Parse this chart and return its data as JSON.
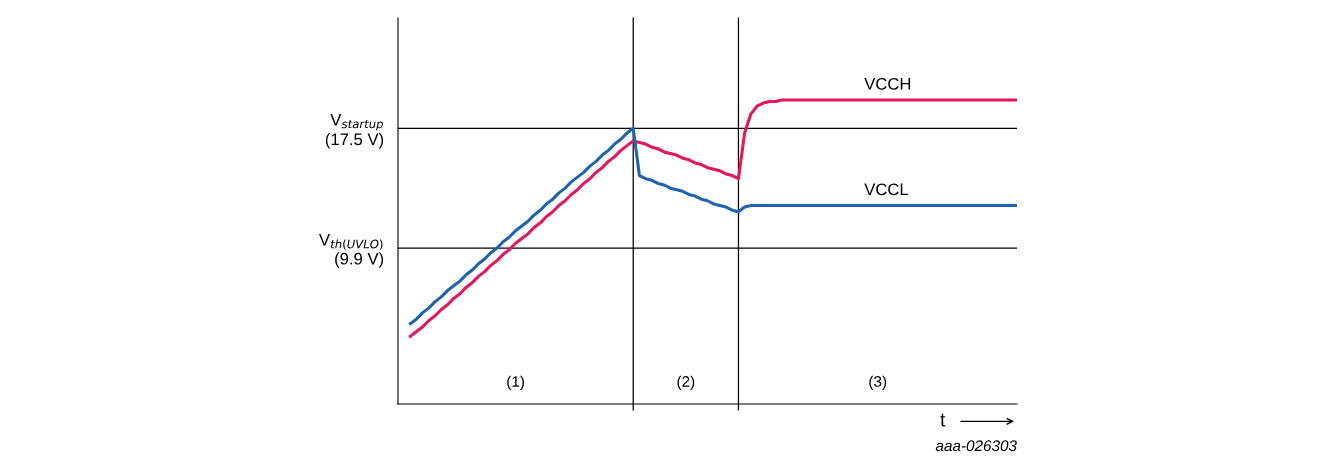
{
  "chart_data": {
    "type": "line",
    "xlabel": "t",
    "categories": [
      null,
      null,
      null,
      null,
      null,
      null,
      null,
      null,
      null,
      null,
      null,
      null,
      null,
      null,
      null,
      null,
      null,
      null,
      null,
      null,
      null,
      null,
      null,
      null,
      null,
      null,
      null,
      null,
      null,
      null,
      null,
      null,
      null,
      null,
      null,
      null,
      null,
      null,
      null,
      null,
      null,
      null,
      null,
      null,
      null,
      null,
      null,
      null,
      null,
      null,
      null,
      null,
      null,
      null,
      null,
      null,
      null,
      null,
      null,
      null,
      null,
      null,
      null,
      null,
      null,
      null,
      null,
      null,
      null,
      null,
      null,
      null,
      null,
      null,
      null,
      null,
      null,
      null,
      null,
      null,
      null,
      null,
      null,
      null,
      null,
      null,
      null,
      null,
      null,
      null,
      null,
      null,
      null,
      null,
      null,
      null,
      null,
      null,
      null,
      null,
      null
    ],
    "ylim": [
      0,
      24.5
    ],
    "yticks": [
      {
        "value": 17.5,
        "label": "V$_{startup}$\n(17.5 V)"
      },
      {
        "value": 9.9,
        "label": "V$_{th(UVLO)}$\n(9.9 V)"
      }
    ],
    "tick_labels": "y",
    "legend": false,
    "marker": "none",
    "line_style": "solid",
    "series": [
      {
        "name": "VCCH",
        "color": "#e5175c",
        "values": [
          null,
          null,
          4.3,
          4.6,
          4.9,
          5.3,
          5.6,
          6.0,
          6.3,
          6.7,
          7.0,
          7.4,
          7.7,
          8.1,
          8.4,
          8.8,
          9.1,
          9.5,
          9.8,
          10.2,
          10.5,
          10.8,
          11.2,
          11.5,
          11.9,
          12.2,
          12.6,
          12.9,
          13.3,
          13.6,
          14.0,
          14.3,
          14.7,
          15.0,
          15.4,
          15.7,
          16.1,
          16.4,
          16.7,
          16.6,
          16.5,
          16.3,
          16.2,
          16.0,
          15.9,
          15.8,
          15.6,
          15.5,
          15.3,
          15.2,
          15.0,
          14.9,
          14.8,
          14.6,
          14.5,
          14.3,
          17.2,
          18.4,
          18.9,
          19.1,
          19.2,
          19.2,
          19.3,
          19.3,
          19.3,
          19.3,
          19.3,
          19.3,
          19.3,
          19.3,
          19.3,
          19.3,
          19.3,
          19.3,
          19.3,
          19.3,
          19.3,
          19.3,
          19.3,
          19.3,
          19.3,
          19.3,
          19.3,
          19.3,
          19.3,
          19.3,
          19.3,
          19.3,
          19.3,
          19.3,
          19.3,
          19.3,
          19.3,
          19.3,
          19.3,
          19.3,
          19.3,
          19.3,
          19.3,
          19.3,
          19.3
        ]
      },
      {
        "name": "VCCL",
        "color": "#1e64ae",
        "values": [
          null,
          null,
          5.1,
          5.4,
          5.8,
          6.1,
          6.5,
          6.8,
          7.2,
          7.5,
          7.8,
          8.2,
          8.5,
          8.9,
          9.2,
          9.6,
          9.9,
          10.3,
          10.6,
          11.0,
          11.3,
          11.6,
          12.0,
          12.3,
          12.7,
          13.0,
          13.4,
          13.7,
          14.1,
          14.4,
          14.7,
          15.1,
          15.4,
          15.8,
          16.1,
          16.5,
          16.8,
          17.2,
          17.5,
          14.5,
          14.3,
          14.2,
          14.0,
          13.9,
          13.7,
          13.6,
          13.5,
          13.3,
          13.2,
          13.0,
          12.9,
          12.7,
          12.6,
          12.5,
          12.3,
          12.2,
          12.5,
          12.6,
          12.6,
          12.6,
          12.6,
          12.6,
          12.6,
          12.6,
          12.6,
          12.6,
          12.6,
          12.6,
          12.6,
          12.6,
          12.6,
          12.6,
          12.6,
          12.6,
          12.6,
          12.6,
          12.6,
          12.6,
          12.6,
          12.6,
          12.6,
          12.6,
          12.6,
          12.6,
          12.6,
          12.6,
          12.6,
          12.6,
          12.6,
          12.6,
          12.6,
          12.6,
          12.6,
          12.6,
          12.6,
          12.6,
          12.6,
          12.6,
          12.6,
          12.6,
          12.6
        ]
      }
    ],
    "ref_lines": [
      {
        "axis": "y",
        "value": 17.5,
        "color": "#000000"
      },
      {
        "axis": "y",
        "value": 9.9,
        "color": "#000000"
      }
    ],
    "annotations": [
      "(1)",
      "(2)",
      "(3)",
      "aaa-026303"
    ]
  }
}
